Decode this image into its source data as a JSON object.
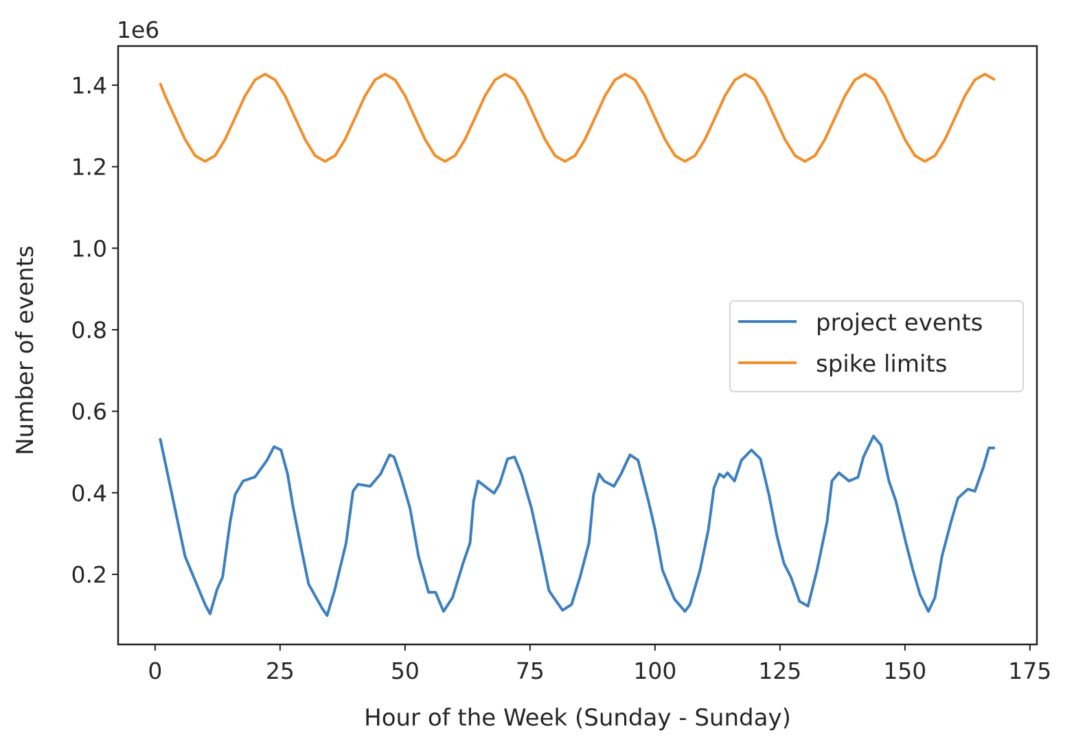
{
  "chart_data": {
    "type": "line",
    "title": "",
    "xlabel": "Hour of the Week (Sunday - Sunday)",
    "ylabel": "Number of events",
    "y_multiplier_label": "1e6",
    "xlim": [
      -7.4,
      176.4
    ],
    "ylim": [
      0.028,
      1.496
    ],
    "x_ticks": [
      0,
      25,
      50,
      75,
      100,
      125,
      150,
      175
    ],
    "x_tick_labels": [
      "0",
      "25",
      "50",
      "75",
      "100",
      "125",
      "150",
      "175"
    ],
    "y_ticks": [
      0.2,
      0.4,
      0.6,
      0.8,
      1.0,
      1.2,
      1.4
    ],
    "y_tick_labels": [
      "0.2",
      "0.4",
      "0.6",
      "0.8",
      "1.0",
      "1.2",
      "1.4"
    ],
    "grid": false,
    "legend_placement": "center-right",
    "series": [
      {
        "name": "project events",
        "color": "#3d7fbf",
        "points": [
          [
            1,
            0.534
          ],
          [
            6,
            0.244
          ],
          [
            10,
            0.126
          ],
          [
            11,
            0.103
          ],
          [
            12.4,
            0.163
          ],
          [
            13.5,
            0.193
          ],
          [
            15,
            0.328
          ],
          [
            16,
            0.395
          ],
          [
            17.6,
            0.429
          ],
          [
            20,
            0.439
          ],
          [
            22.4,
            0.48
          ],
          [
            23.8,
            0.513
          ],
          [
            25.2,
            0.505
          ],
          [
            26.5,
            0.446
          ],
          [
            27.6,
            0.365
          ],
          [
            29.3,
            0.26
          ],
          [
            30.7,
            0.176
          ],
          [
            33.4,
            0.117
          ],
          [
            34.4,
            0.099
          ],
          [
            35.9,
            0.16
          ],
          [
            38.2,
            0.277
          ],
          [
            39.6,
            0.404
          ],
          [
            40.6,
            0.421
          ],
          [
            43,
            0.416
          ],
          [
            45.1,
            0.446
          ],
          [
            46.9,
            0.493
          ],
          [
            47.8,
            0.488
          ],
          [
            49.2,
            0.438
          ],
          [
            51,
            0.362
          ],
          [
            52.7,
            0.244
          ],
          [
            54.7,
            0.156
          ],
          [
            56.1,
            0.156
          ],
          [
            57.7,
            0.109
          ],
          [
            59.5,
            0.143
          ],
          [
            61.6,
            0.227
          ],
          [
            63,
            0.277
          ],
          [
            63.7,
            0.379
          ],
          [
            64.6,
            0.429
          ],
          [
            66.4,
            0.412
          ],
          [
            67.8,
            0.399
          ],
          [
            68.9,
            0.421
          ],
          [
            70.5,
            0.483
          ],
          [
            71.9,
            0.488
          ],
          [
            73.3,
            0.446
          ],
          [
            75.3,
            0.362
          ],
          [
            77.4,
            0.244
          ],
          [
            78.8,
            0.16
          ],
          [
            81.5,
            0.112
          ],
          [
            83.3,
            0.126
          ],
          [
            85,
            0.193
          ],
          [
            86.8,
            0.277
          ],
          [
            87.7,
            0.395
          ],
          [
            88.8,
            0.446
          ],
          [
            89.8,
            0.429
          ],
          [
            91.8,
            0.416
          ],
          [
            93.2,
            0.446
          ],
          [
            95,
            0.493
          ],
          [
            96.6,
            0.48
          ],
          [
            98.7,
            0.379
          ],
          [
            100,
            0.311
          ],
          [
            101.5,
            0.21
          ],
          [
            103.9,
            0.139
          ],
          [
            106,
            0.109
          ],
          [
            107,
            0.126
          ],
          [
            109,
            0.21
          ],
          [
            110.7,
            0.311
          ],
          [
            111.8,
            0.412
          ],
          [
            112.9,
            0.446
          ],
          [
            113.8,
            0.438
          ],
          [
            114.5,
            0.449
          ],
          [
            115.9,
            0.429
          ],
          [
            117.3,
            0.48
          ],
          [
            119.3,
            0.505
          ],
          [
            121.1,
            0.483
          ],
          [
            122.8,
            0.395
          ],
          [
            124.4,
            0.294
          ],
          [
            125.8,
            0.227
          ],
          [
            127.2,
            0.193
          ],
          [
            128.9,
            0.134
          ],
          [
            130.6,
            0.122
          ],
          [
            132.4,
            0.21
          ],
          [
            134.4,
            0.328
          ],
          [
            135.4,
            0.429
          ],
          [
            136.8,
            0.449
          ],
          [
            138.8,
            0.429
          ],
          [
            140.6,
            0.438
          ],
          [
            141.7,
            0.488
          ],
          [
            143.7,
            0.539
          ],
          [
            145.2,
            0.517
          ],
          [
            146.8,
            0.429
          ],
          [
            148.2,
            0.379
          ],
          [
            150.2,
            0.277
          ],
          [
            151.6,
            0.21
          ],
          [
            153,
            0.151
          ],
          [
            154.7,
            0.109
          ],
          [
            156,
            0.143
          ],
          [
            157.4,
            0.244
          ],
          [
            159.2,
            0.328
          ],
          [
            160.6,
            0.387
          ],
          [
            162.6,
            0.409
          ],
          [
            164,
            0.404
          ],
          [
            165.7,
            0.463
          ],
          [
            166.8,
            0.51
          ],
          [
            168,
            0.51
          ]
        ]
      },
      {
        "name": "spike limits",
        "color": "#f28e2b",
        "points": [
          [
            1,
            1.405
          ],
          [
            2,
            1.374
          ],
          [
            4,
            1.32
          ],
          [
            6,
            1.267
          ],
          [
            8,
            1.227
          ],
          [
            10,
            1.213
          ],
          [
            12,
            1.227
          ],
          [
            14,
            1.267
          ],
          [
            16,
            1.32
          ],
          [
            18,
            1.374
          ],
          [
            20,
            1.413
          ],
          [
            22,
            1.427
          ],
          [
            24,
            1.413
          ],
          [
            26,
            1.374
          ],
          [
            28,
            1.32
          ],
          [
            30,
            1.267
          ],
          [
            32,
            1.227
          ],
          [
            34,
            1.213
          ],
          [
            36,
            1.227
          ],
          [
            38,
            1.267
          ],
          [
            40,
            1.32
          ],
          [
            42,
            1.374
          ],
          [
            44,
            1.413
          ],
          [
            46,
            1.427
          ],
          [
            48,
            1.413
          ],
          [
            50,
            1.374
          ],
          [
            52,
            1.32
          ],
          [
            54,
            1.267
          ],
          [
            56,
            1.227
          ],
          [
            58,
            1.213
          ],
          [
            60,
            1.227
          ],
          [
            62,
            1.267
          ],
          [
            64,
            1.32
          ],
          [
            66,
            1.374
          ],
          [
            68,
            1.413
          ],
          [
            70,
            1.427
          ],
          [
            72,
            1.413
          ],
          [
            74,
            1.374
          ],
          [
            76,
            1.32
          ],
          [
            78,
            1.267
          ],
          [
            80,
            1.227
          ],
          [
            82,
            1.213
          ],
          [
            84,
            1.227
          ],
          [
            86,
            1.267
          ],
          [
            88,
            1.32
          ],
          [
            90,
            1.374
          ],
          [
            92,
            1.413
          ],
          [
            94,
            1.427
          ],
          [
            96,
            1.413
          ],
          [
            98,
            1.374
          ],
          [
            100,
            1.32
          ],
          [
            102,
            1.267
          ],
          [
            104,
            1.227
          ],
          [
            106,
            1.213
          ],
          [
            108,
            1.227
          ],
          [
            110,
            1.267
          ],
          [
            112,
            1.32
          ],
          [
            114,
            1.374
          ],
          [
            116,
            1.413
          ],
          [
            118,
            1.427
          ],
          [
            120,
            1.413
          ],
          [
            122,
            1.374
          ],
          [
            124,
            1.32
          ],
          [
            126,
            1.267
          ],
          [
            128,
            1.227
          ],
          [
            130,
            1.213
          ],
          [
            132,
            1.227
          ],
          [
            134,
            1.267
          ],
          [
            136,
            1.32
          ],
          [
            138,
            1.374
          ],
          [
            140,
            1.413
          ],
          [
            142,
            1.427
          ],
          [
            144,
            1.413
          ],
          [
            146,
            1.374
          ],
          [
            148,
            1.32
          ],
          [
            150,
            1.267
          ],
          [
            152,
            1.227
          ],
          [
            154,
            1.213
          ],
          [
            156,
            1.227
          ],
          [
            158,
            1.267
          ],
          [
            160,
            1.32
          ],
          [
            162,
            1.374
          ],
          [
            164,
            1.413
          ],
          [
            166,
            1.427
          ],
          [
            168,
            1.413
          ]
        ]
      }
    ]
  }
}
